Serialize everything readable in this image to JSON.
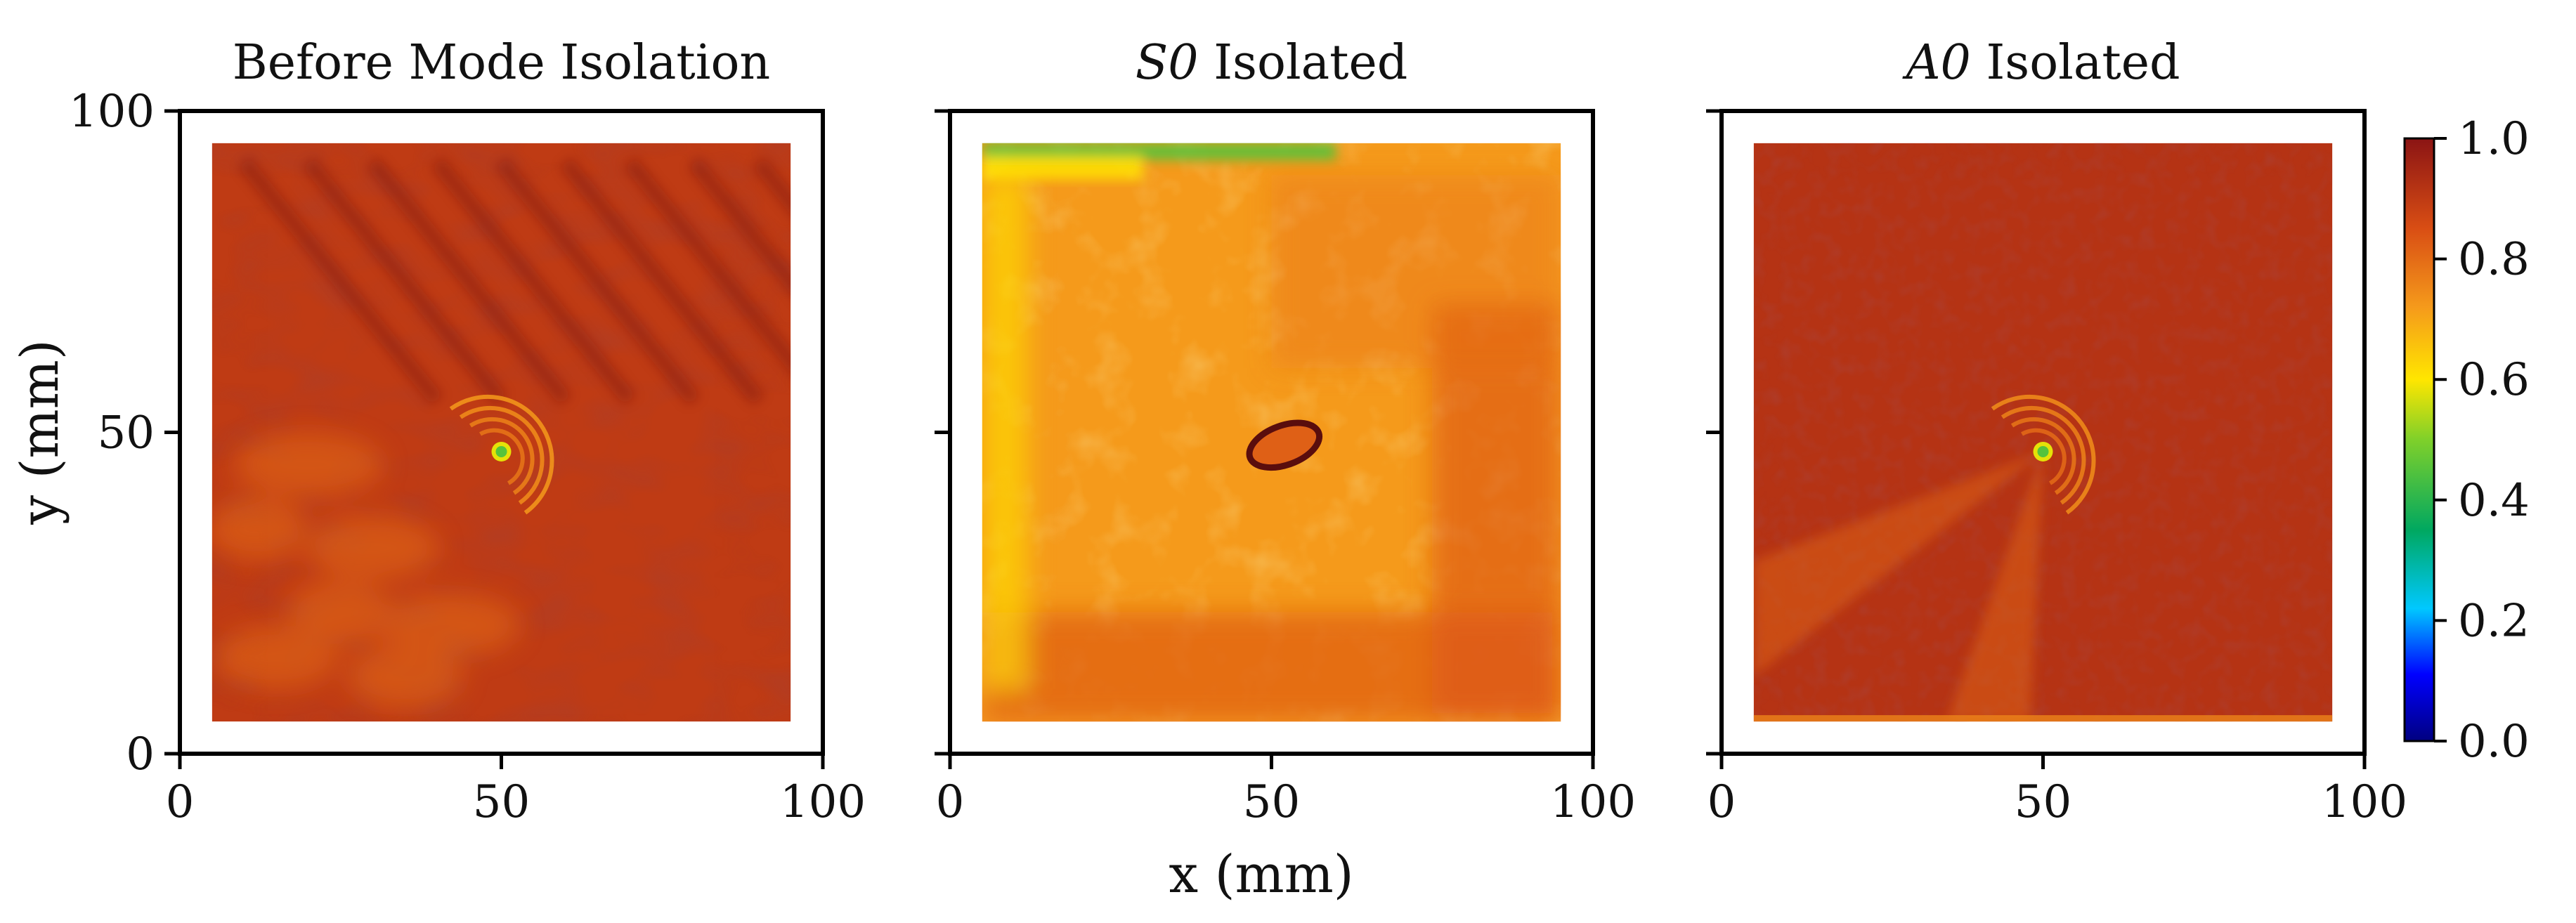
{
  "chart_data": {
    "type": "heatmap",
    "colormap": "jet",
    "panels": [
      {
        "title_prefix": "",
        "title_text": "Before Mode Isolation",
        "xlim": [
          0,
          100
        ],
        "ylim": [
          0,
          100
        ],
        "xticks": [
          0,
          50,
          100
        ],
        "yticks": [
          0,
          50,
          100
        ],
        "show_ytick_labels": true,
        "scan_extent": {
          "x": [
            5,
            95
          ],
          "y": [
            5,
            95
          ]
        },
        "background_value": 0.9,
        "features": [
          {
            "kind": "defect_spot",
            "x": 50,
            "y": 47,
            "value": 0.45
          },
          {
            "kind": "wave_rings",
            "x": 50,
            "y": 47,
            "value": 0.78
          }
        ]
      },
      {
        "title_prefix": "S0",
        "title_text": " Isolated",
        "xlim": [
          0,
          100
        ],
        "ylim": [
          0,
          100
        ],
        "xticks": [
          0,
          50,
          100
        ],
        "yticks": [
          0,
          50,
          100
        ],
        "show_ytick_labels": false,
        "scan_extent": {
          "x": [
            5,
            95
          ],
          "y": [
            5,
            95
          ]
        },
        "background_value": 0.72,
        "features": [
          {
            "kind": "defect_ring",
            "x": 52,
            "y": 48,
            "value": 0.92
          },
          {
            "kind": "top_edge_band",
            "y": 95,
            "value": 0.45
          }
        ]
      },
      {
        "title_prefix": "A0",
        "title_text": " Isolated",
        "xlim": [
          0,
          100
        ],
        "ylim": [
          0,
          100
        ],
        "xticks": [
          0,
          50,
          100
        ],
        "yticks": [
          0,
          50,
          100
        ],
        "show_ytick_labels": false,
        "scan_extent": {
          "x": [
            5,
            95
          ],
          "y": [
            5,
            95
          ]
        },
        "background_value": 0.92,
        "features": [
          {
            "kind": "defect_spot",
            "x": 50,
            "y": 47,
            "value": 0.45
          },
          {
            "kind": "wave_rings",
            "x": 50,
            "y": 47,
            "value": 0.8
          }
        ]
      }
    ],
    "xlabel": "x (mm)",
    "ylabel": "y (mm)",
    "colorbar": {
      "range": [
        0.0,
        1.0
      ],
      "ticks": [
        "0.0",
        "0.2",
        "0.4",
        "0.6",
        "0.8",
        "1.0"
      ]
    }
  }
}
